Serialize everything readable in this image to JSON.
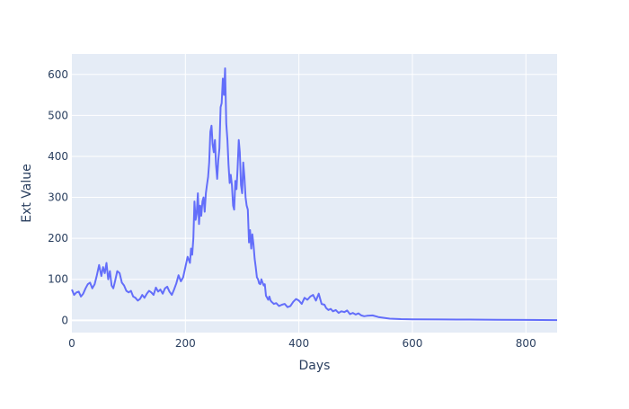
{
  "chart_data": {
    "type": "line",
    "xlabel": "Days",
    "ylabel": "Ext Value",
    "xlim": [
      0,
      855
    ],
    "ylim": [
      -30,
      650
    ],
    "xticks": [
      0,
      200,
      400,
      600,
      800
    ],
    "yticks": [
      0,
      100,
      200,
      300,
      400,
      500,
      600
    ],
    "grid": true,
    "colors": {
      "line": "#636efa",
      "plot_bg": "#e5ecf6",
      "grid": "#ffffff",
      "text": "#2a3f5f"
    },
    "series": [
      {
        "x": [
          0,
          4,
          8,
          12,
          16,
          20,
          24,
          28,
          32,
          36,
          40,
          44,
          48,
          52,
          55,
          58,
          61,
          64,
          67,
          70,
          73,
          76,
          80,
          84,
          88,
          92,
          96,
          100,
          104,
          108,
          112,
          116,
          120,
          124,
          128,
          132,
          136,
          140,
          144,
          148,
          152,
          156,
          160,
          164,
          168,
          172,
          176,
          180,
          184,
          188,
          192,
          196,
          200,
          204,
          208,
          210,
          212,
          214,
          216,
          218,
          220,
          222,
          224,
          226,
          228,
          230,
          232,
          234,
          236,
          238,
          240,
          242,
          244,
          246,
          248,
          250,
          252,
          254,
          256,
          258,
          260,
          262,
          264,
          266,
          268,
          270,
          272,
          274,
          276,
          278,
          280,
          282,
          284,
          286,
          288,
          290,
          292,
          294,
          296,
          298,
          300,
          302,
          304,
          306,
          308,
          310,
          312,
          314,
          316,
          318,
          320,
          322,
          324,
          326,
          328,
          330,
          332,
          334,
          336,
          338,
          340,
          342,
          344,
          346,
          348,
          350,
          352,
          356,
          360,
          365,
          370,
          375,
          380,
          385,
          390,
          395,
          400,
          405,
          410,
          415,
          420,
          425,
          430,
          435,
          440,
          445,
          448,
          452,
          456,
          460,
          465,
          470,
          475,
          480,
          485,
          490,
          495,
          500,
          505,
          510,
          515,
          520,
          530,
          540,
          550,
          560,
          580,
          600,
          650,
          700,
          750,
          800,
          855
        ],
        "y": [
          75,
          62,
          68,
          70,
          58,
          65,
          78,
          88,
          92,
          78,
          88,
          110,
          135,
          108,
          130,
          115,
          140,
          100,
          120,
          85,
          78,
          95,
          120,
          115,
          92,
          85,
          72,
          68,
          72,
          58,
          55,
          48,
          52,
          62,
          55,
          65,
          72,
          68,
          62,
          80,
          70,
          75,
          65,
          78,
          82,
          70,
          62,
          75,
          90,
          110,
          95,
          105,
          130,
          155,
          140,
          175,
          160,
          200,
          290,
          245,
          260,
          310,
          235,
          280,
          255,
          290,
          300,
          265,
          310,
          330,
          350,
          385,
          460,
          475,
          430,
          410,
          440,
          380,
          345,
          390,
          420,
          520,
          530,
          590,
          550,
          615,
          480,
          440,
          380,
          335,
          355,
          330,
          280,
          270,
          340,
          320,
          370,
          440,
          410,
          330,
          310,
          385,
          350,
          300,
          280,
          270,
          190,
          220,
          175,
          210,
          185,
          150,
          130,
          105,
          100,
          90,
          88,
          100,
          92,
          85,
          88,
          60,
          55,
          50,
          58,
          48,
          45,
          40,
          42,
          35,
          38,
          40,
          32,
          35,
          45,
          52,
          48,
          40,
          55,
          50,
          58,
          62,
          48,
          65,
          40,
          38,
          30,
          25,
          28,
          22,
          25,
          18,
          22,
          20,
          24,
          15,
          18,
          14,
          17,
          12,
          10,
          11,
          12,
          8,
          6,
          4,
          3,
          2.5,
          2,
          1.8,
          1.4,
          1.0,
          0.6
        ]
      }
    ]
  }
}
